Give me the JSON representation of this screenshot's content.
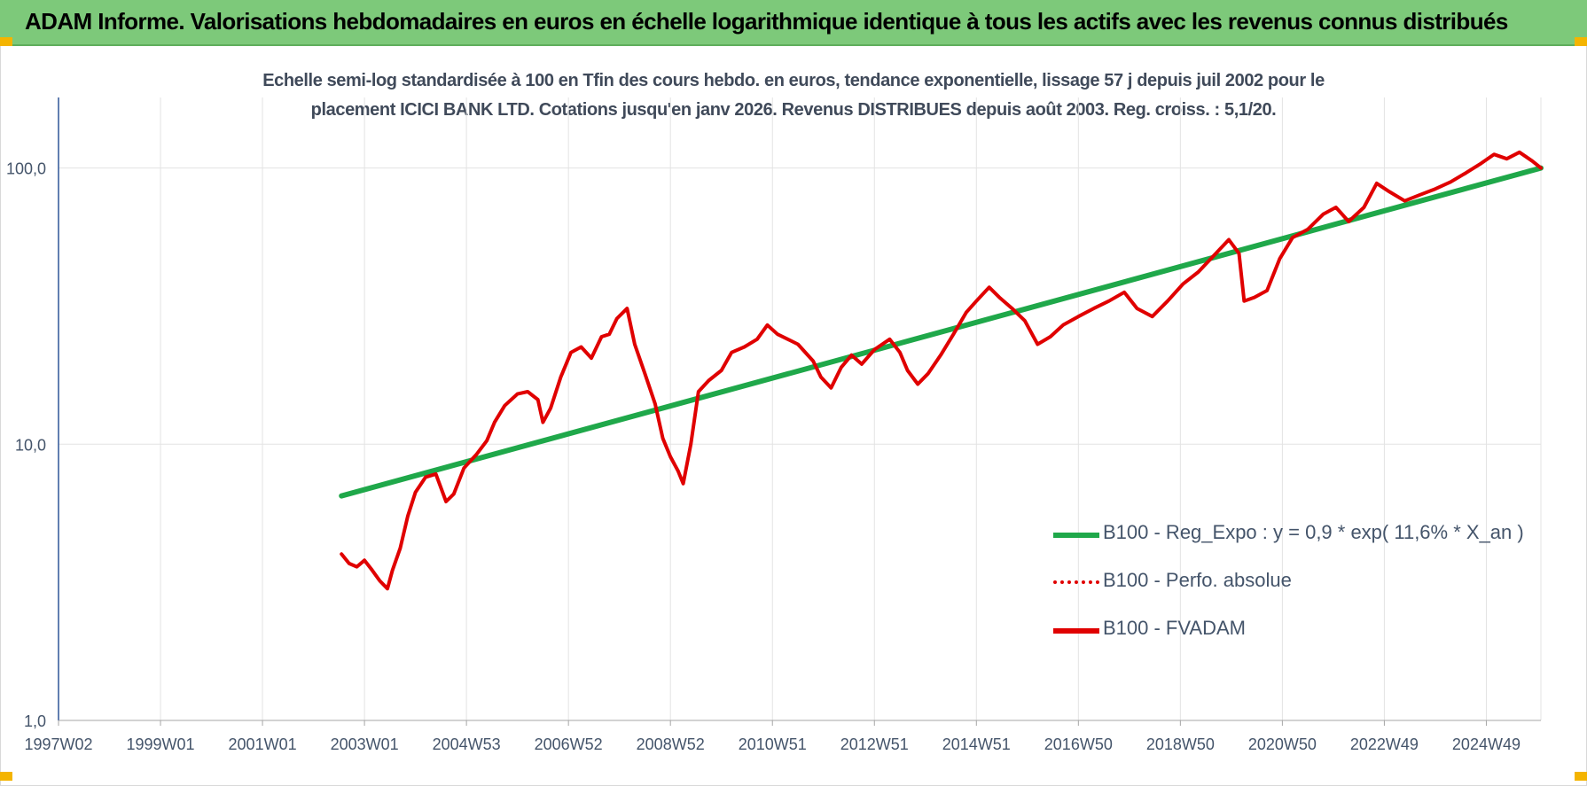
{
  "header": {
    "title": "ADAM Informe. Valorisations hebdomadaires en euros en échelle logarithmique identique à tous les actifs avec les revenus connus distribués"
  },
  "colors": {
    "header_bg": "#7dc97a",
    "regression": "#1fa84a",
    "fvadam": "#e00000",
    "perfo": "#e00000",
    "grid": "#e3e3e3",
    "axis": "#2f5597"
  },
  "chart_data": {
    "type": "line",
    "title_line1": "Echelle semi-log standardisée à 100 en Tfin des cours hebdo. en euros, tendance exponentielle, lissage 57 j depuis juil 2002 pour le",
    "title_line2": "placement ICICI BANK LTD. Cotations jusqu'en janv 2026. Revenus DISTRIBUES depuis août 2003. Reg. croiss. : 5,1/20.",
    "yscale": "log",
    "ylim": [
      1,
      180
    ],
    "y_ticks": [
      {
        "value": 1,
        "label": "1,0"
      },
      {
        "value": 10,
        "label": "10,0"
      },
      {
        "value": 100,
        "label": "100,0"
      }
    ],
    "xlim": [
      1997.0,
      2026.07
    ],
    "x_ticks": [
      {
        "x": 1997.0,
        "label": "1997W02"
      },
      {
        "x": 1999.0,
        "label": "1999W01"
      },
      {
        "x": 2001.0,
        "label": "2001W01"
      },
      {
        "x": 2003.0,
        "label": "2003W01"
      },
      {
        "x": 2005.0,
        "label": "2004W53"
      },
      {
        "x": 2007.0,
        "label": "2006W52"
      },
      {
        "x": 2009.0,
        "label": "2008W52"
      },
      {
        "x": 2011.0,
        "label": "2010W51"
      },
      {
        "x": 2013.0,
        "label": "2012W51"
      },
      {
        "x": 2015.0,
        "label": "2014W51"
      },
      {
        "x": 2017.0,
        "label": "2016W50"
      },
      {
        "x": 2019.0,
        "label": "2018W50"
      },
      {
        "x": 2021.0,
        "label": "2020W50"
      },
      {
        "x": 2023.0,
        "label": "2022W49"
      },
      {
        "x": 2025.0,
        "label": "2024W49"
      }
    ],
    "grid": true,
    "legend_position": "bottom-right",
    "series": [
      {
        "name": "B100 - Reg_Expo : y = 0,9 * exp( 11,6% *  X_an )",
        "style": "solid-thick",
        "x": [
          2002.55,
          2026.07
        ],
        "y": [
          6.5,
          100
        ]
      },
      {
        "name": "B100 - Perfo. absolue",
        "style": "dotted",
        "x": [],
        "y": []
      },
      {
        "name": "B100 - FVADAM",
        "style": "solid",
        "x": [
          2002.55,
          2002.7,
          2002.85,
          2003.0,
          2003.15,
          2003.3,
          2003.45,
          2003.55,
          2003.7,
          2003.85,
          2004.0,
          2004.2,
          2004.4,
          2004.6,
          2004.75,
          2004.95,
          2005.2,
          2005.4,
          2005.55,
          2005.75,
          2006.0,
          2006.2,
          2006.4,
          2006.5,
          2006.65,
          2006.85,
          2007.05,
          2007.25,
          2007.45,
          2007.65,
          2007.8,
          2007.95,
          2008.15,
          2008.3,
          2008.5,
          2008.7,
          2008.85,
          2009.0,
          2009.15,
          2009.25,
          2009.4,
          2009.55,
          2009.75,
          2010.0,
          2010.2,
          2010.45,
          2010.7,
          2010.9,
          2011.1,
          2011.3,
          2011.5,
          2011.8,
          2011.95,
          2012.15,
          2012.35,
          2012.55,
          2012.75,
          2013.0,
          2013.3,
          2013.5,
          2013.65,
          2013.85,
          2014.05,
          2014.3,
          2014.55,
          2014.8,
          2015.0,
          2015.25,
          2015.45,
          2015.7,
          2015.95,
          2016.2,
          2016.45,
          2016.7,
          2017.0,
          2017.3,
          2017.6,
          2017.9,
          2018.15,
          2018.45,
          2018.75,
          2019.05,
          2019.35,
          2019.65,
          2019.95,
          2020.15,
          2020.25,
          2020.45,
          2020.7,
          2020.95,
          2021.2,
          2021.5,
          2021.8,
          2022.05,
          2022.3,
          2022.6,
          2022.85,
          2023.1,
          2023.4,
          2023.7,
          2024.0,
          2024.3,
          2024.6,
          2024.9,
          2025.15,
          2025.4,
          2025.65,
          2025.9,
          2026.07
        ],
        "y": [
          4.0,
          3.7,
          3.6,
          3.8,
          3.5,
          3.2,
          3.0,
          3.5,
          4.2,
          5.5,
          6.7,
          7.6,
          7.8,
          6.2,
          6.6,
          8.2,
          9.2,
          10.3,
          12.0,
          13.8,
          15.2,
          15.5,
          14.5,
          12.0,
          13.5,
          17.5,
          21.5,
          22.5,
          20.5,
          24.5,
          25.0,
          28.5,
          31.0,
          23.0,
          18.0,
          14.0,
          10.5,
          9.0,
          8.0,
          7.2,
          10.0,
          15.5,
          17.0,
          18.5,
          21.5,
          22.5,
          24.0,
          27.0,
          25.0,
          24.0,
          23.0,
          20.0,
          17.5,
          16.0,
          19.0,
          21.0,
          19.5,
          22.0,
          24.0,
          21.5,
          18.5,
          16.5,
          18.0,
          21.0,
          25.0,
          30.0,
          33.0,
          37.0,
          34.0,
          31.0,
          28.0,
          23.0,
          24.5,
          27.0,
          29.0,
          31.0,
          33.0,
          35.5,
          31.0,
          29.0,
          33.0,
          38.0,
          42.0,
          48.0,
          55.0,
          49.0,
          33.0,
          34.0,
          36.0,
          47.0,
          56.0,
          60.0,
          68.0,
          72.0,
          64.0,
          72.0,
          88.0,
          82.0,
          76.0,
          80.0,
          84.0,
          89.0,
          96.0,
          104.0,
          112.0,
          108.0,
          114.0,
          106.0,
          100.0
        ]
      }
    ]
  }
}
